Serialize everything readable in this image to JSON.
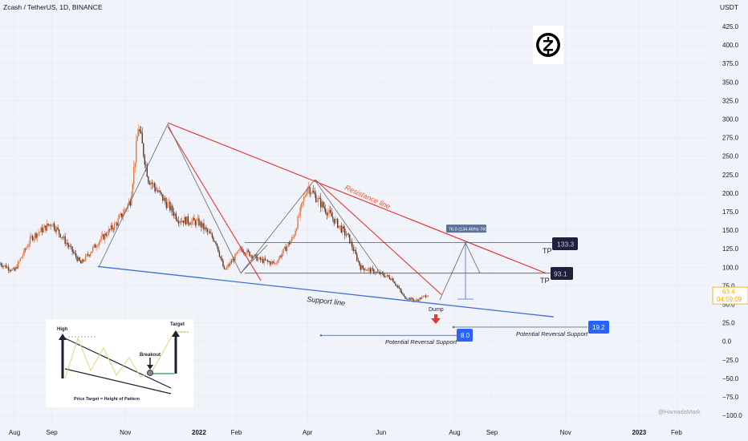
{
  "header": {
    "symbol_title": "Zcash / TetherUS, 1D, BINANCE",
    "currency": "USDT"
  },
  "price_axis": {
    "ticks": [
      "425.0",
      "400.0",
      "375.0",
      "350.0",
      "325.0",
      "300.0",
      "275.0",
      "250.0",
      "225.0",
      "200.0",
      "175.0",
      "150.0",
      "125.0",
      "100.0",
      "75.0",
      "50.0",
      "25.0",
      "0.0",
      "−25.0",
      "−50.0",
      "−75.0",
      "−100.0"
    ],
    "last_price": "63.4",
    "countdown": "04:59:09",
    "last_price_color": "#f7a600"
  },
  "time_axis": {
    "labels": [
      "Aug",
      "Sep",
      "Nov",
      "2022",
      "Feb",
      "Apr",
      "Jun",
      "Aug",
      "Sep",
      "Nov",
      "2023",
      "Feb"
    ]
  },
  "annotations": {
    "resistance_label": "Resistance line",
    "support_label": "Support line",
    "dump_label": "Dump",
    "tp_label_1": "TP",
    "tp_label_2": "TP",
    "tp_value_1": "133.3",
    "tp_value_2": "93.1",
    "measure_label": "76.0 (134.46%) 760",
    "support_value_1": "8.0",
    "support_value_2": "19.2",
    "potential_support_1": "Potential Reversal Support",
    "potential_support_2": "Potential Reversal Support",
    "watermark": "@HamadaMark"
  },
  "inset": {
    "high": "High",
    "target": "Target",
    "breakout": "Breakout",
    "caption": "Price Target = Height of Pattern"
  },
  "colors": {
    "up": "#26a69a",
    "down": "#ef5350",
    "candle": "#e8743b",
    "resistance": "#e53935",
    "support": "#3e6fd8",
    "tp_box": "#1e2139",
    "support_box": "#2962ff"
  },
  "chart_data": {
    "type": "candlestick",
    "title": "Zcash / TetherUS, 1D, BINANCE",
    "ylabel": "USDT",
    "ylim": [
      -110,
      440
    ],
    "x_range": [
      "2021-07-20",
      "2023-03-01"
    ],
    "series": [
      {
        "name": "close",
        "x": [
          "2021-07-20",
          "2021-08-01",
          "2021-08-15",
          "2021-09-01",
          "2021-09-10",
          "2021-09-25",
          "2021-10-10",
          "2021-10-25",
          "2021-11-05",
          "2021-11-12",
          "2021-11-20",
          "2021-12-01",
          "2021-12-15",
          "2022-01-01",
          "2022-01-15",
          "2022-01-22",
          "2022-02-05",
          "2022-02-20",
          "2022-03-05",
          "2022-03-20",
          "2022-04-01",
          "2022-04-10",
          "2022-04-25",
          "2022-05-05",
          "2022-05-15",
          "2022-05-25",
          "2022-06-10",
          "2022-06-20",
          "2022-06-30",
          "2022-07-10"
        ],
        "y": [
          105,
          95,
          140,
          160,
          140,
          105,
          135,
          160,
          190,
          290,
          220,
          195,
          165,
          160,
          135,
          95,
          125,
          110,
          105,
          140,
          210,
          190,
          160,
          140,
          100,
          95,
          85,
          60,
          55,
          63.4
        ]
      }
    ],
    "annotations": [
      {
        "label": "Resistance line",
        "from": [
          "2021-11-12",
          300
        ],
        "to": [
          "2022-10-20",
          100
        ]
      },
      {
        "label": "Support line",
        "from": [
          "2021-09-25",
          100
        ],
        "to": [
          "2022-10-20",
          35
        ]
      },
      {
        "label": "TP",
        "value": 133.3
      },
      {
        "label": "TP",
        "value": 93.1
      },
      {
        "label": "Potential Reversal Support",
        "value": 8.0
      },
      {
        "label": "Potential Reversal Support",
        "value": 19.2
      }
    ]
  }
}
